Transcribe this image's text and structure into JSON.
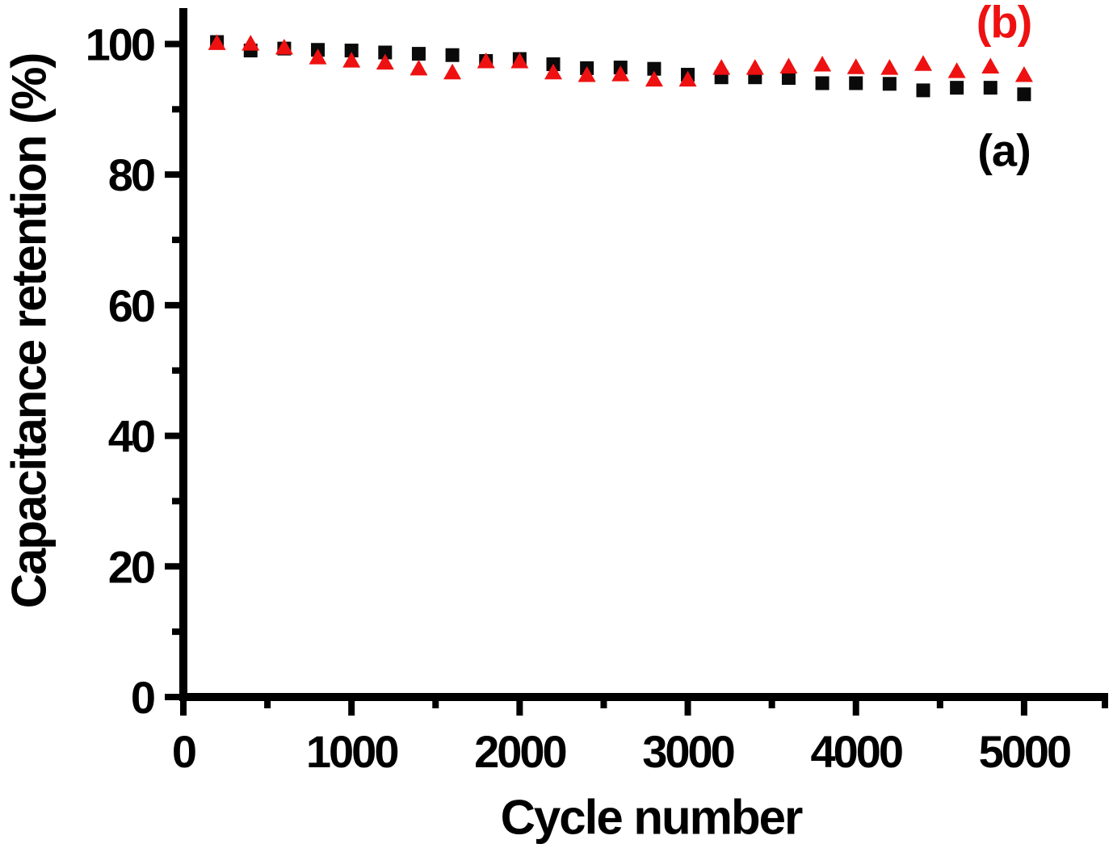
{
  "figure": {
    "background_color": "#ffffff",
    "axis_color": "#000000"
  },
  "chart_data": {
    "type": "scatter",
    "title": "",
    "xlabel": "Cycle number",
    "ylabel": "Capacitance retention (%)",
    "xlim": [
      0,
      5500
    ],
    "ylim": [
      0,
      105.5
    ],
    "grid": false,
    "x_major_ticks": [
      0,
      1000,
      2000,
      3000,
      4000,
      5000
    ],
    "x_minor_ticks": [
      500,
      1500,
      2500,
      3500,
      4500,
      5500
    ],
    "y_major_ticks": [
      0,
      20,
      40,
      60,
      80,
      100
    ],
    "y_minor_ticks": [
      10,
      30,
      50,
      70,
      90
    ],
    "x": [
      200,
      400,
      600,
      800,
      1000,
      1200,
      1400,
      1600,
      1800,
      2000,
      2200,
      2400,
      2600,
      2800,
      3000,
      3200,
      3400,
      3600,
      3800,
      4000,
      4200,
      4400,
      4600,
      4800,
      5000
    ],
    "series": [
      {
        "name": "(a)",
        "marker": "square",
        "color": "#0a0a0a",
        "values": [
          100.3,
          99.0,
          99.3,
          99.1,
          99.0,
          98.7,
          98.5,
          98.3,
          97.4,
          97.7,
          96.9,
          96.3,
          96.4,
          96.2,
          95.3,
          94.9,
          94.9,
          94.8,
          94.0,
          94.0,
          93.9,
          92.9,
          93.3,
          93.3,
          92.3
        ]
      },
      {
        "name": "(b)",
        "marker": "triangle",
        "color": "#ee1111",
        "values": [
          100.2,
          100.1,
          99.5,
          98.0,
          97.5,
          97.2,
          96.3,
          95.7,
          97.4,
          97.4,
          95.7,
          95.3,
          95.4,
          94.6,
          94.6,
          96.4,
          96.4,
          96.6,
          96.9,
          96.5,
          96.4,
          97.0,
          95.9,
          96.6,
          95.3
        ]
      }
    ],
    "annotations": [
      {
        "text": "(b)",
        "color": "#ee1111",
        "x": 4900,
        "y": 103.7
      },
      {
        "text": "(a)",
        "color": "#000000",
        "x": 4900,
        "y": 84.0
      }
    ],
    "legend_position": "none"
  }
}
